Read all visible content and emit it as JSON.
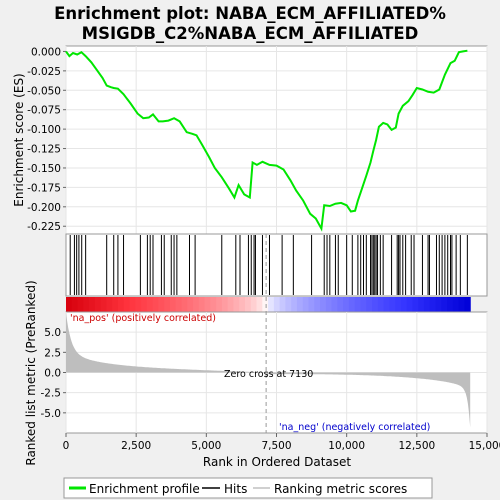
{
  "chart_data": {
    "type": "line",
    "title_line1": "Enrichment plot: NABA_ECM_AFFILIATED%",
    "title_line2": "MSIGDB_C2%NABA_ECM_AFFILIATED",
    "es_ylabel": "Enrichment score (ES)",
    "metric_ylabel": "Ranked list metric (PreRanked)",
    "xlabel": "Rank in Ordered Dataset",
    "x_ticks": [
      0,
      2500,
      5000,
      7500,
      10000,
      12500,
      15000
    ],
    "x_tick_labels": [
      "0",
      "2,500",
      "5,000",
      "7,500",
      "10,000",
      "12,500",
      "15,000"
    ],
    "xlim": [
      0,
      15000
    ],
    "es_ylim": [
      -0.235,
      0.007
    ],
    "es_ticks": [
      0.0,
      -0.025,
      -0.05,
      -0.075,
      -0.1,
      -0.125,
      -0.15,
      -0.175,
      -0.2,
      -0.225
    ],
    "es_tick_labels": [
      "0.000",
      "-0.025",
      "-0.050",
      "-0.075",
      "-0.100",
      "-0.125",
      "-0.150",
      "-0.175",
      "-0.200",
      "-0.225"
    ],
    "metric_ylim": [
      -7.5,
      7.5
    ],
    "metric_ticks": [
      5.0,
      2.5,
      0.0,
      -2.5,
      -5.0
    ],
    "metric_tick_labels": [
      "5.0",
      "2.5",
      "0.0",
      "-2.5",
      "-5.0"
    ],
    "zero_cross": 7130,
    "zero_cross_label": "Zero cross at 7130",
    "pos_label": "'na_pos' (positively correlated)",
    "neg_label": "'na_neg' (negatively correlated)",
    "n_genes": 14400,
    "es_series": [
      [
        0,
        0.0
      ],
      [
        120,
        -0.006
      ],
      [
        250,
        -0.002
      ],
      [
        400,
        -0.004
      ],
      [
        550,
        -0.001
      ],
      [
        700,
        -0.006
      ],
      [
        900,
        -0.014
      ],
      [
        1100,
        -0.024
      ],
      [
        1300,
        -0.034
      ],
      [
        1450,
        -0.044
      ],
      [
        1600,
        -0.046
      ],
      [
        1700,
        -0.047
      ],
      [
        1850,
        -0.048
      ],
      [
        2050,
        -0.055
      ],
      [
        2300,
        -0.067
      ],
      [
        2550,
        -0.08
      ],
      [
        2750,
        -0.086
      ],
      [
        2950,
        -0.085
      ],
      [
        3100,
        -0.081
      ],
      [
        3300,
        -0.09
      ],
      [
        3450,
        -0.09
      ],
      [
        3650,
        -0.089
      ],
      [
        3850,
        -0.086
      ],
      [
        4050,
        -0.09
      ],
      [
        4300,
        -0.104
      ],
      [
        4500,
        -0.106
      ],
      [
        4650,
        -0.108
      ],
      [
        4850,
        -0.12
      ],
      [
        5100,
        -0.136
      ],
      [
        5300,
        -0.15
      ],
      [
        5550,
        -0.162
      ],
      [
        5800,
        -0.176
      ],
      [
        6000,
        -0.188
      ],
      [
        6150,
        -0.172
      ],
      [
        6350,
        -0.184
      ],
      [
        6550,
        -0.188
      ],
      [
        6650,
        -0.143
      ],
      [
        6800,
        -0.146
      ],
      [
        7000,
        -0.142
      ],
      [
        7250,
        -0.146
      ],
      [
        7500,
        -0.147
      ],
      [
        7750,
        -0.152
      ],
      [
        8000,
        -0.166
      ],
      [
        8200,
        -0.179
      ],
      [
        8450,
        -0.192
      ],
      [
        8700,
        -0.209
      ],
      [
        8900,
        -0.215
      ],
      [
        9100,
        -0.228
      ],
      [
        9200,
        -0.198
      ],
      [
        9400,
        -0.199
      ],
      [
        9600,
        -0.196
      ],
      [
        9800,
        -0.195
      ],
      [
        10000,
        -0.198
      ],
      [
        10150,
        -0.206
      ],
      [
        10300,
        -0.205
      ],
      [
        10400,
        -0.192
      ],
      [
        10550,
        -0.176
      ],
      [
        10700,
        -0.16
      ],
      [
        10850,
        -0.143
      ],
      [
        10950,
        -0.128
      ],
      [
        11050,
        -0.114
      ],
      [
        11150,
        -0.097
      ],
      [
        11300,
        -0.092
      ],
      [
        11450,
        -0.094
      ],
      [
        11600,
        -0.101
      ],
      [
        11750,
        -0.098
      ],
      [
        11850,
        -0.08
      ],
      [
        12000,
        -0.07
      ],
      [
        12200,
        -0.064
      ],
      [
        12350,
        -0.056
      ],
      [
        12500,
        -0.047
      ],
      [
        12700,
        -0.049
      ],
      [
        12900,
        -0.052
      ],
      [
        13100,
        -0.053
      ],
      [
        13300,
        -0.049
      ],
      [
        13500,
        -0.03
      ],
      [
        13700,
        -0.015
      ],
      [
        13850,
        -0.012
      ],
      [
        14000,
        -0.001
      ],
      [
        14150,
        0.0
      ],
      [
        14300,
        0.001
      ]
    ],
    "hits": [
      150,
      300,
      380,
      460,
      560,
      700,
      1450,
      1700,
      1850,
      2050,
      2650,
      2900,
      3000,
      3100,
      3400,
      3500,
      3750,
      3850,
      3950,
      4400,
      4600,
      5550,
      6050,
      6200,
      6500,
      6600,
      6700,
      6750,
      7000,
      7250,
      7700,
      8100,
      8750,
      9200,
      9300,
      9400,
      9600,
      9700,
      10000,
      10200,
      10400,
      10500,
      10600,
      10700,
      10850,
      10900,
      10950,
      11000,
      11050,
      11100,
      11200,
      11300,
      11600,
      11800,
      11850,
      11900,
      12000,
      12100,
      12300,
      12400,
      12700,
      12900,
      12950,
      13200,
      13300,
      13400,
      13500,
      13600,
      13700,
      13750,
      13900,
      14050,
      14300
    ],
    "legend": [
      {
        "label": "Enrichment profile",
        "color": "#00e600"
      },
      {
        "label": "Hits",
        "color": "#000000"
      },
      {
        "label": "Ranking metric scores",
        "color": "#c0c0c0"
      }
    ],
    "colors": {
      "es_line": "#00e600",
      "pos": "#ff0000",
      "neg": "#0000ff",
      "metric_fill": "#bebebe"
    }
  }
}
